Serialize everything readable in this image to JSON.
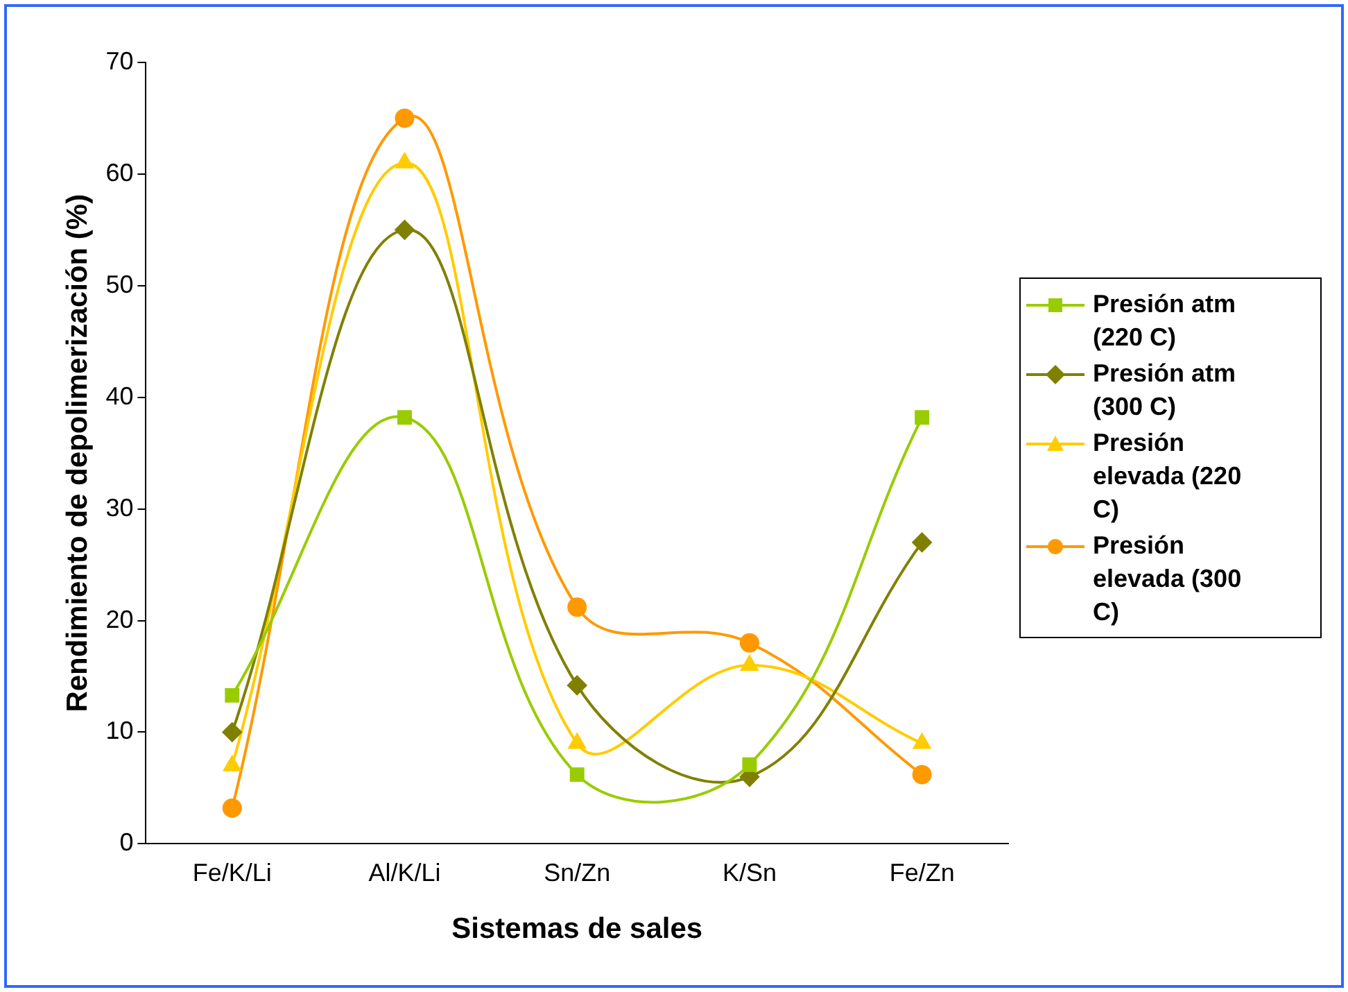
{
  "chart_data": {
    "type": "line",
    "xlabel": "Sistemas de sales",
    "ylabel": "Rendimiento de depolimerización (%)",
    "categories": [
      "Fe/K/Li",
      "Al/K/Li",
      "Sn/Zn",
      "K/Sn",
      "Fe/Zn"
    ],
    "series": [
      {
        "name": "Presión atm (220 C)",
        "color": "#99cc00",
        "marker": "square",
        "values": [
          13.3,
          38.2,
          6.2,
          7.1,
          38.2
        ]
      },
      {
        "name": "Presión atm (300 C)",
        "color": "#808000",
        "marker": "diamond",
        "values": [
          10,
          55,
          14.2,
          6,
          27
        ]
      },
      {
        "name": "Presión elevada (220 C)",
        "color": "#ffcc00",
        "marker": "triangle",
        "values": [
          7,
          61,
          9,
          16,
          9
        ]
      },
      {
        "name": "Presión elevada (300 C)",
        "color": "#ff9900",
        "marker": "circle",
        "values": [
          3.2,
          65,
          21.2,
          18,
          6.2
        ]
      }
    ],
    "ylim": [
      0,
      70
    ],
    "yticks": [
      0,
      10,
      20,
      30,
      40,
      50,
      60,
      70
    ],
    "grid": false,
    "legend": "right"
  }
}
